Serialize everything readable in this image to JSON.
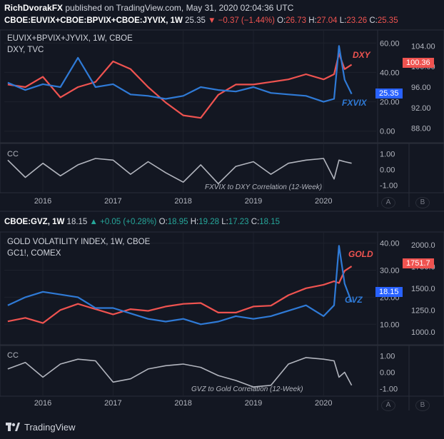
{
  "header": {
    "author": "RichDvorakFX",
    "published": "published on TradingView.com, May 31, 2020 02:04:36 UTC"
  },
  "panel1": {
    "symbol": "CBOE:EUVIX+CBOE:BPVIX+CBOE:JYVIX, 1W",
    "last": "25.35",
    "change": "▼ −0.37 (−1.44%)",
    "ohlc": {
      "o_label": "O:",
      "o": "26.73",
      "h_label": "H:",
      "h": "27.04",
      "l_label": "L:",
      "l": "23.26",
      "c_label": "C:",
      "c": "25.35"
    },
    "title": "EUVIX+BPVIX+JYVIX, 1W, CBOE",
    "subtitle": "DXY, TVC",
    "series_label_red": "DXY",
    "series_label_blue": "FXVIX",
    "price_badge_red": "100.36",
    "price_badge_blue": "25.35",
    "cc_label": "CC",
    "cc_caption": "FXVIX to DXY Correlation (12-Week)"
  },
  "panel2": {
    "symbol": "CBOE:GVZ, 1W",
    "last": "18.15",
    "change": "▲ +0.05 (+0.28%)",
    "ohlc": {
      "o_label": "O:",
      "o": "18.95",
      "h_label": "H:",
      "h": "19.28",
      "l_label": "L:",
      "l": "17.23",
      "c_label": "C:",
      "c": "18.15"
    },
    "title": "GOLD VOLATILITY INDEX, 1W, CBOE",
    "subtitle": "GC1!, COMEX",
    "series_label_red": "GOLD",
    "series_label_blue": "GVZ",
    "price_badge_red": "1751.7",
    "price_badge_blue": "18.15",
    "cc_label": "CC",
    "cc_caption": "GVZ to Gold Correlation (12-Week)"
  },
  "scale_buttons": {
    "a": "A",
    "b": "B"
  },
  "footer": {
    "brand": "TradingView"
  },
  "colors": {
    "bg": "#131722",
    "red": "#ef5350",
    "blue": "#2962ff",
    "blue_line": "#2f7ad6",
    "grey": "#b2b5be"
  },
  "chart_data": [
    {
      "type": "line",
      "x_ticks": [
        "2016",
        "2017",
        "2018",
        "2019",
        "2020"
      ],
      "y_left_ticks": [
        "60.00",
        "40.00",
        "20.00",
        "0.00"
      ],
      "y_left_range": [
        -5,
        65
      ],
      "y_right_ticks": [
        "104.00",
        "100.00",
        "96.00",
        "92.00",
        "88.00"
      ],
      "y_right_range": [
        86,
        106
      ],
      "x": [
        2015.5,
        2015.75,
        2016.0,
        2016.25,
        2016.5,
        2016.75,
        2017.0,
        2017.25,
        2017.5,
        2017.75,
        2018.0,
        2018.25,
        2018.5,
        2018.75,
        2019.0,
        2019.25,
        2019.5,
        2019.75,
        2020.0,
        2020.15,
        2020.22,
        2020.3,
        2020.4
      ],
      "series": [
        {
          "name": "FXVIX",
          "axis": "left",
          "values": [
            33,
            28,
            32,
            30,
            50,
            30,
            32,
            25,
            24,
            22,
            24,
            30,
            28,
            27,
            30,
            26,
            25,
            24,
            20,
            22,
            58,
            35,
            25.35
          ]
        },
        {
          "name": "DXY",
          "axis": "right",
          "values": [
            96.5,
            96,
            98,
            94,
            96,
            97,
            101,
            99.5,
            96,
            93,
            90.5,
            90,
            94.5,
            96.5,
            96.5,
            97,
            97.5,
            98.5,
            97.5,
            98.5,
            102.5,
            99.5,
            100.36
          ]
        }
      ]
    },
    {
      "type": "line",
      "x_ticks": [
        "2016",
        "2017",
        "2018",
        "2019",
        "2020"
      ],
      "y_range": [
        -1.2,
        1.2
      ],
      "y_ticks": [
        "1.00",
        "0.00",
        "-1.00"
      ],
      "x": [
        2015.5,
        2015.75,
        2016.0,
        2016.25,
        2016.5,
        2016.75,
        2017.0,
        2017.25,
        2017.5,
        2017.75,
        2018.0,
        2018.25,
        2018.5,
        2018.75,
        2019.0,
        2019.25,
        2019.5,
        2019.75,
        2020.0,
        2020.15,
        2020.22,
        2020.3,
        2020.4
      ],
      "series": [
        {
          "name": "CC",
          "values": [
            0.6,
            -0.5,
            0.4,
            -0.4,
            0.3,
            0.7,
            0.6,
            -0.3,
            0.5,
            -0.2,
            -0.8,
            0.3,
            -0.9,
            0.2,
            0.5,
            -0.3,
            0.4,
            0.6,
            0.7,
            -0.6,
            0.6,
            0.5,
            0.4
          ]
        }
      ]
    },
    {
      "type": "line",
      "x_ticks": [
        "2016",
        "2017",
        "2018",
        "2019",
        "2020"
      ],
      "y_left_ticks": [
        "40.00",
        "30.00",
        "20.00",
        "10.00"
      ],
      "y_left_range": [
        4,
        42
      ],
      "y_right_ticks": [
        "2000.0",
        "1750.0",
        "1500.0",
        "1250.0",
        "1000.0"
      ],
      "y_right_range": [
        900,
        2080
      ],
      "x": [
        2015.5,
        2015.75,
        2016.0,
        2016.25,
        2016.5,
        2016.75,
        2017.0,
        2017.25,
        2017.5,
        2017.75,
        2018.0,
        2018.25,
        2018.5,
        2018.75,
        2019.0,
        2019.25,
        2019.5,
        2019.75,
        2020.0,
        2020.15,
        2020.22,
        2020.3,
        2020.4
      ],
      "series": [
        {
          "name": "GVZ",
          "axis": "left",
          "values": [
            17,
            20,
            22,
            21,
            20,
            16,
            16,
            14,
            12,
            11,
            12,
            10,
            11,
            13,
            12,
            13,
            15,
            17,
            13,
            17,
            39,
            25,
            18.15
          ]
        },
        {
          "name": "GOLD",
          "axis": "right",
          "values": [
            1120,
            1160,
            1100,
            1250,
            1320,
            1260,
            1200,
            1260,
            1240,
            1290,
            1320,
            1330,
            1220,
            1220,
            1290,
            1300,
            1420,
            1500,
            1540,
            1580,
            1560,
            1700,
            1751.7
          ]
        }
      ]
    },
    {
      "type": "line",
      "x_ticks": [
        "2016",
        "2017",
        "2018",
        "2019",
        "2020"
      ],
      "y_range": [
        -1.2,
        1.2
      ],
      "y_ticks": [
        "1.00",
        "0.00",
        "-1.00"
      ],
      "x": [
        2015.5,
        2015.75,
        2016.0,
        2016.25,
        2016.5,
        2016.75,
        2017.0,
        2017.25,
        2017.5,
        2017.75,
        2018.0,
        2018.25,
        2018.5,
        2018.75,
        2019.0,
        2019.25,
        2019.5,
        2019.75,
        2020.0,
        2020.15,
        2020.22,
        2020.3,
        2020.4
      ],
      "series": [
        {
          "name": "CC",
          "values": [
            0.2,
            0.6,
            -0.3,
            0.5,
            0.8,
            0.7,
            -0.6,
            -0.4,
            0.2,
            0.4,
            0.5,
            0.3,
            -0.2,
            -0.5,
            -0.9,
            -0.8,
            0.5,
            0.9,
            0.8,
            0.7,
            -0.3,
            0.0,
            -0.8
          ]
        }
      ]
    }
  ]
}
